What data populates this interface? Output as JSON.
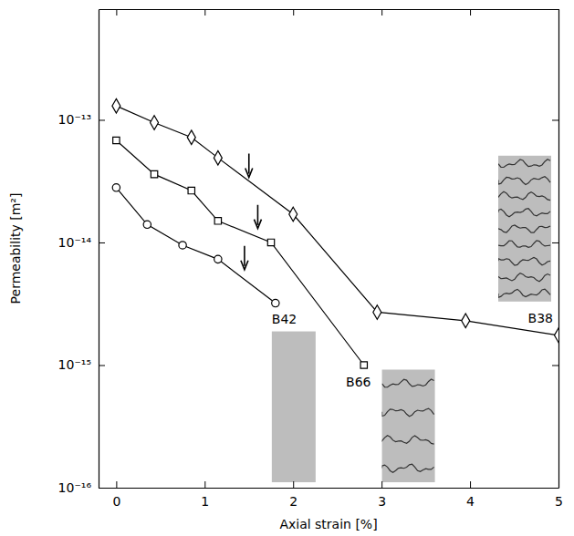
{
  "chart_data": {
    "type": "line",
    "x_label": "Axial strain [%]",
    "y_label": "Permeability [m²]",
    "log": "y",
    "xlim": [
      -0.2,
      5
    ],
    "xticks": [
      0,
      1,
      2,
      3,
      4,
      5
    ],
    "ylim": [
      1e-16,
      8e-13
    ],
    "yticks": [
      {
        "value": 1e-16,
        "label": "10⁻¹⁶"
      },
      {
        "value": 1e-15,
        "label": "10⁻¹⁵"
      },
      {
        "value": 1e-14,
        "label": "10⁻¹⁴"
      },
      {
        "value": 1e-13,
        "label": "10⁻¹³"
      }
    ],
    "series": [
      {
        "name": "B38",
        "color": "#000000",
        "marker": "diamond",
        "line_style": "solid",
        "x": [
          0,
          0.43,
          0.85,
          1.15,
          2,
          2.95,
          3.95,
          5
        ],
        "values": [
          1.3e-13,
          9.5e-14,
          7.2e-14,
          4.9e-14,
          1.7e-14,
          2.7e-15,
          2.3e-15,
          1.75e-15
        ]
      },
      {
        "name": "B66",
        "color": "#000000",
        "marker": "square",
        "line_style": "solid",
        "x": [
          0,
          0.43,
          0.85,
          1.15,
          1.75,
          2.8
        ],
        "values": [
          6.8e-14,
          3.6e-14,
          2.65e-14,
          1.5e-14,
          1e-14,
          1e-15
        ]
      },
      {
        "name": "B42",
        "color": "#000000",
        "marker": "circle",
        "line_style": "solid",
        "x": [
          0,
          0.35,
          0.75,
          1.15,
          1.8
        ],
        "values": [
          2.8e-14,
          1.4e-14,
          9.5e-15,
          7.3e-15,
          3.2e-15
        ]
      }
    ],
    "arrows": [
      {
        "x": 1.5,
        "y": 3.4e-14
      },
      {
        "x": 1.6,
        "y": 1.3e-14
      },
      {
        "x": 1.45,
        "y": 6e-15
      }
    ]
  }
}
